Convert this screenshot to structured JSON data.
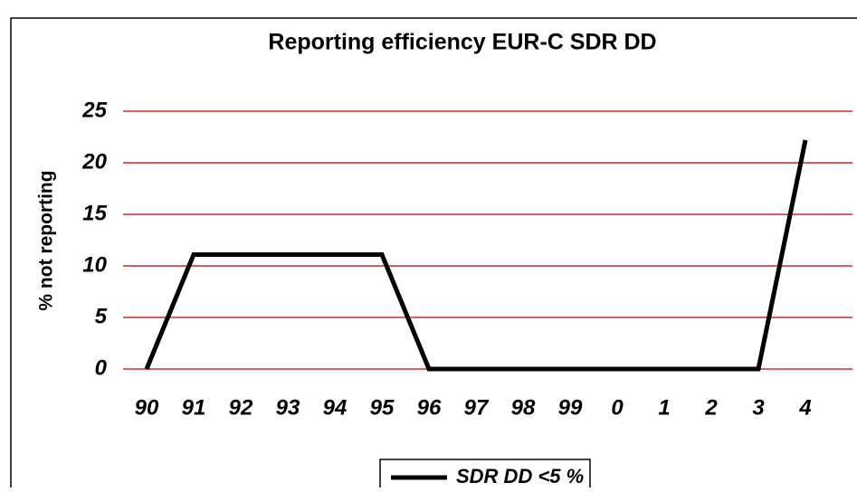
{
  "chart_data": {
    "type": "line",
    "title": "Reporting efficiency EUR-C SDR DD",
    "y_label": "% not reporting",
    "categories": [
      "90",
      "91",
      "92",
      "93",
      "94",
      "95",
      "96",
      "97",
      "98",
      "99",
      "0",
      "1",
      "2",
      "3",
      "4"
    ],
    "series": [
      {
        "name": "SDR DD <5 %",
        "color": "#000000",
        "values": [
          0,
          11.1,
          11.1,
          11.1,
          11.1,
          11.1,
          0,
          0,
          0,
          0,
          0,
          0,
          0,
          0,
          22.2
        ]
      }
    ],
    "ylim": [
      0,
      25
    ],
    "yticks": [
      0,
      5,
      10,
      15,
      20,
      25
    ],
    "grid": true,
    "grid_color": "#c00000",
    "legend": "bottom"
  }
}
